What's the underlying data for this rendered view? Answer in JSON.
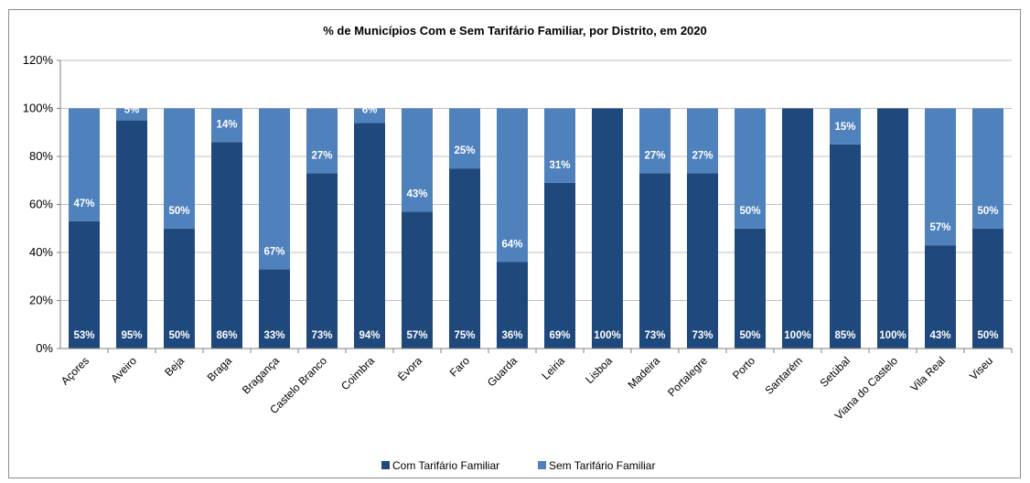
{
  "chart_data": {
    "type": "bar",
    "stacked": true,
    "title": "% de Municípios Com e Sem Tarifário Familiar, por Distrito, em 2020",
    "xlabel": "",
    "ylabel": "",
    "ylim": [
      0,
      120
    ],
    "yticks": [
      "0%",
      "20%",
      "40%",
      "60%",
      "80%",
      "100%",
      "120%"
    ],
    "grid": true,
    "legend": "bottom",
    "categories": [
      "Açores",
      "Aveiro",
      "Beja",
      "Braga",
      "Bragança",
      "Castelo Branco",
      "Coimbra",
      "Évora",
      "Faro",
      "Guarda",
      "Leiria",
      "Lisboa",
      "Madeira",
      "Portalegre",
      "Porto",
      "Santarém",
      "Setúbal",
      "Viana do Castelo",
      "Vila Real",
      "Viseu"
    ],
    "series": [
      {
        "name": "Com Tarifário Familiar",
        "color": "#1f497d",
        "values": [
          53,
          95,
          50,
          86,
          33,
          73,
          94,
          57,
          75,
          36,
          69,
          100,
          73,
          73,
          50,
          100,
          85,
          100,
          43,
          50
        ],
        "labels": [
          "53%",
          "95%",
          "50%",
          "86%",
          "33%",
          "73%",
          "94%",
          "57%",
          "75%",
          "36%",
          "69%",
          "100%",
          "73%",
          "73%",
          "50%",
          "100%",
          "85%",
          "100%",
          "43%",
          "50%"
        ]
      },
      {
        "name": "Sem Tarifário Familiar",
        "color": "#4f81bd",
        "values": [
          47,
          5,
          50,
          14,
          67,
          27,
          6,
          43,
          25,
          64,
          31,
          0,
          27,
          27,
          50,
          0,
          15,
          0,
          57,
          50
        ],
        "labels": [
          "47%",
          "5%",
          "50%",
          "14%",
          "67%",
          "27%",
          "6%",
          "43%",
          "25%",
          "64%",
          "31%",
          "",
          "27%",
          "27%",
          "50%",
          "",
          "15%",
          "",
          "57%",
          "50%"
        ]
      }
    ]
  }
}
